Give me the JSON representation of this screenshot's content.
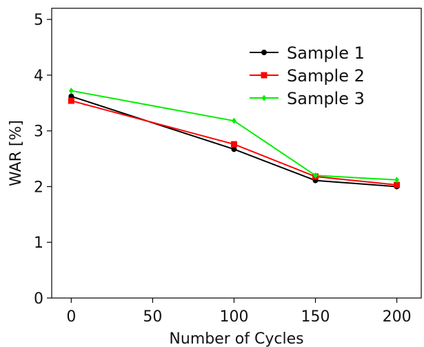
{
  "chart_data": {
    "type": "line",
    "title": "",
    "xlabel": "Number of Cycles",
    "ylabel": "WAR [%]",
    "xlim": [
      -12,
      215
    ],
    "ylim": [
      0,
      5.2
    ],
    "xticks": [
      0,
      50,
      100,
      150,
      200
    ],
    "yticks": [
      0,
      1,
      2,
      3,
      4,
      5
    ],
    "grid": false,
    "legend_position": "top-right",
    "x": [
      0,
      100,
      150,
      200
    ],
    "series": [
      {
        "name": "Sample 1",
        "color": "#000000",
        "marker": "circle",
        "values": [
          3.62,
          2.67,
          2.11,
          2.0
        ]
      },
      {
        "name": "Sample 2",
        "color": "#ff0000",
        "marker": "square",
        "values": [
          3.54,
          2.76,
          2.18,
          2.03
        ]
      },
      {
        "name": "Sample 3",
        "color": "#00ee00",
        "marker": "diamond",
        "values": [
          3.72,
          3.18,
          2.2,
          2.12
        ]
      }
    ]
  }
}
